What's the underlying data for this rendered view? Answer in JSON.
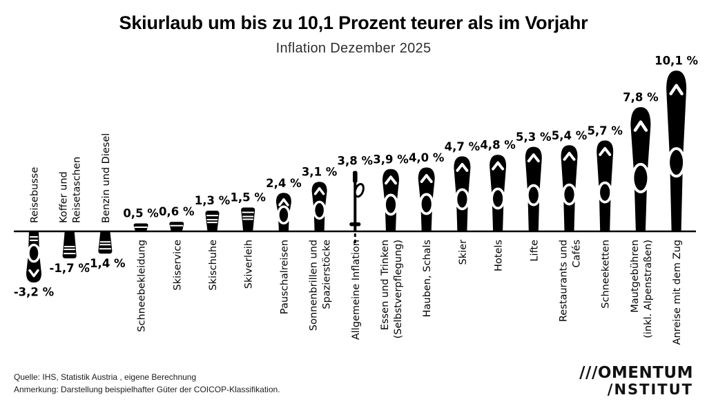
{
  "title": "Skiurlaub um bis zu 10,1 Prozent teurer als im Vorjahr",
  "subtitle": "Inflation Dezember 2025",
  "chart_data": {
    "type": "bar",
    "title": "Skiurlaub um bis zu 10,1 Prozent teurer als im Vorjahr",
    "subtitle": "Inflation Dezember 2025",
    "unit": "%",
    "baseline": 0,
    "ylim": [
      -3.2,
      10.1
    ],
    "bar_color": "#000000",
    "background_color": "#ffffff",
    "bar_style": "ski-pictogram",
    "legend": "none",
    "grid": false,
    "items": [
      {
        "label": [
          "Reisebusse"
        ],
        "value": -3.2,
        "display": "-3,2 %",
        "style": "ski"
      },
      {
        "label": [
          "Koffer und",
          "Reisetaschen"
        ],
        "value": -1.7,
        "display": "-1,7 %",
        "style": "ski"
      },
      {
        "label": [
          "Benzin und Diesel"
        ],
        "value": -1.4,
        "display": "-1,4 %",
        "style": "ski"
      },
      {
        "label": [
          "Schneebekleidung"
        ],
        "value": 0.5,
        "display": "0,5 %",
        "style": "ski"
      },
      {
        "label": [
          "Skiservice"
        ],
        "value": 0.6,
        "display": "0,6 %",
        "style": "ski"
      },
      {
        "label": [
          "Skischuhe"
        ],
        "value": 1.3,
        "display": "1,3 %",
        "style": "ski"
      },
      {
        "label": [
          "Skiverleih"
        ],
        "value": 1.5,
        "display": "1,5 %",
        "style": "ski"
      },
      {
        "label": [
          "Pauschalreisen"
        ],
        "value": 2.4,
        "display": "2,4 %",
        "style": "ski"
      },
      {
        "label": [
          "Sonnenbrillen und",
          "Spazierstöcke"
        ],
        "value": 3.1,
        "display": "3,1 %",
        "style": "ski"
      },
      {
        "label": [
          "Allgemeine Inflation"
        ],
        "value": 3.8,
        "display": "3,8 %",
        "style": "pole"
      },
      {
        "label": [
          "Essen und Trinken",
          "(Selbstverpflegung)"
        ],
        "value": 3.9,
        "display": "3,9 %",
        "style": "ski"
      },
      {
        "label": [
          "Hauben, Schals"
        ],
        "value": 4.0,
        "display": "4,0 %",
        "style": "ski"
      },
      {
        "label": [
          "Skier"
        ],
        "value": 4.7,
        "display": "4,7 %",
        "style": "ski"
      },
      {
        "label": [
          "Hotels"
        ],
        "value": 4.8,
        "display": "4,8 %",
        "style": "ski"
      },
      {
        "label": [
          "Lifte"
        ],
        "value": 5.3,
        "display": "5,3 %",
        "style": "ski"
      },
      {
        "label": [
          "Restaurants und",
          "Cafés"
        ],
        "value": 5.4,
        "display": "5,4 %",
        "style": "ski"
      },
      {
        "label": [
          "Schneeketten"
        ],
        "value": 5.7,
        "display": "5,7 %",
        "style": "ski"
      },
      {
        "label": [
          "Mautgebühren",
          "(inkl. Alpenstraßen)"
        ],
        "value": 7.8,
        "display": "7,8 %",
        "style": "ski"
      },
      {
        "label": [
          "Anreise mit dem Zug"
        ],
        "value": 10.1,
        "display": "10,1 %",
        "style": "ski"
      }
    ]
  },
  "footer": {
    "source": "Quelle: IHS, Statistik Austria , eigene Berechnung",
    "note": "Anmerkung: Darstellung beispielhafter Güter der COICOP-Klassifikation."
  },
  "logo": {
    "line1": "///OMENTUM",
    "line2": "/NSTITUT"
  }
}
